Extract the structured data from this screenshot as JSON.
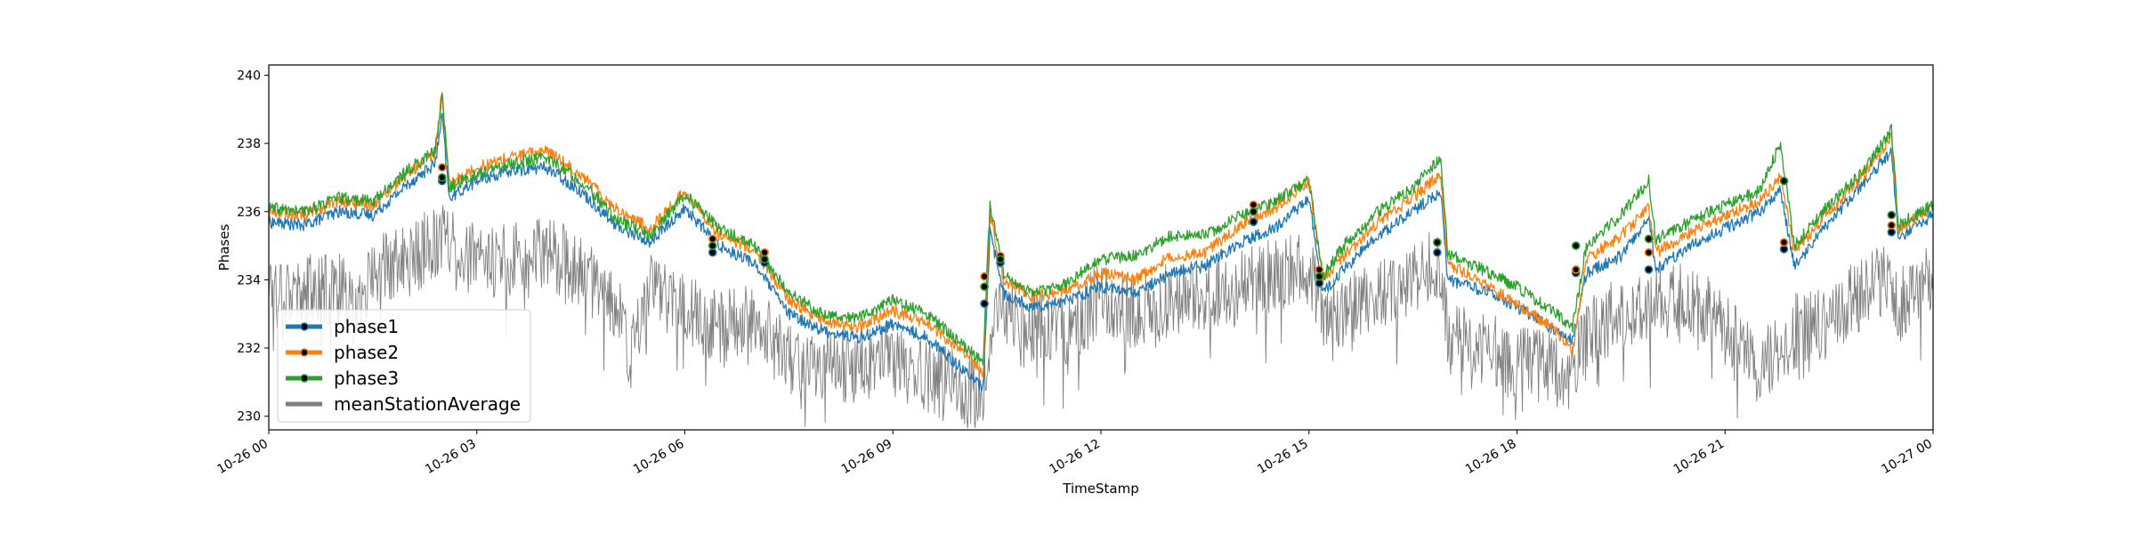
{
  "chart_data": {
    "type": "line",
    "title": "",
    "xlabel": "TimeStamp",
    "ylabel": "Phases",
    "ylim": [
      229.6,
      240.3
    ],
    "yticks": [
      230,
      232,
      234,
      236,
      238,
      240
    ],
    "xlim": [
      "10-26 00:00",
      "10-27 00:00"
    ],
    "xticks": [
      {
        "label": "10-26 00",
        "hour": 0
      },
      {
        "label": "10-26 03",
        "hour": 3
      },
      {
        "label": "10-26 06",
        "hour": 6
      },
      {
        "label": "10-26 09",
        "hour": 9
      },
      {
        "label": "10-26 12",
        "hour": 12
      },
      {
        "label": "10-26 15",
        "hour": 15
      },
      {
        "label": "10-26 18",
        "hour": 18
      },
      {
        "label": "10-26 21",
        "hour": 21
      },
      {
        "label": "10-27 00",
        "hour": 24
      }
    ],
    "legend_position": "lower-left",
    "grid": false,
    "series": [
      {
        "name": "phase1",
        "color": "#1f77b4",
        "x": [
          0,
          0.5,
          1,
          1.5,
          2,
          2.4,
          2.5,
          2.6,
          3,
          3.5,
          4,
          4.5,
          5,
          5.5,
          6,
          6.5,
          7,
          7.5,
          8,
          8.5,
          9,
          9.5,
          10,
          10.3,
          10.4,
          10.6,
          11,
          11.5,
          12,
          12.5,
          13,
          13.5,
          14,
          14.5,
          15,
          15.2,
          15.5,
          16,
          16.5,
          16.9,
          17,
          17.5,
          18,
          18.5,
          18.8,
          19,
          19.5,
          19.9,
          20,
          20.5,
          21,
          21.5,
          21.8,
          22,
          22.5,
          23,
          23.4,
          23.5,
          24
        ],
        "y": [
          235.7,
          235.6,
          236,
          235.9,
          236.8,
          237.4,
          238.8,
          236.4,
          236.9,
          237.2,
          237.3,
          236.6,
          235.6,
          235.1,
          236.1,
          235,
          234.5,
          233,
          232.5,
          232.3,
          232.7,
          232.3,
          231.4,
          230.8,
          235.4,
          233.6,
          233.2,
          233.4,
          233.8,
          233.6,
          234.2,
          234.4,
          235.1,
          235.5,
          236.4,
          233.6,
          234.3,
          235.3,
          236,
          236.6,
          234,
          233.7,
          233.2,
          232.6,
          232.2,
          234.2,
          234.7,
          235.8,
          234.3,
          235,
          235.5,
          236,
          236.6,
          234.4,
          235.7,
          236.8,
          237.8,
          235.2,
          235.9
        ]
      },
      {
        "name": "phase2",
        "color": "#ff7f0e",
        "x": [
          0,
          0.5,
          1,
          1.5,
          2,
          2.4,
          2.5,
          2.6,
          3,
          3.5,
          4,
          4.5,
          5,
          5.5,
          6,
          6.5,
          7,
          7.5,
          8,
          8.5,
          9,
          9.5,
          10,
          10.3,
          10.4,
          10.6,
          11,
          11.5,
          12,
          12.5,
          13,
          13.5,
          14,
          14.5,
          15,
          15.2,
          15.5,
          16,
          16.5,
          16.9,
          17,
          17.5,
          18,
          18.5,
          18.8,
          19,
          19.5,
          19.9,
          20,
          20.5,
          21,
          21.5,
          21.8,
          22,
          22.5,
          23,
          23.4,
          23.5,
          24
        ],
        "y": [
          236,
          235.9,
          236.3,
          236.2,
          237.1,
          237.7,
          239.6,
          236.8,
          237.3,
          237.6,
          237.8,
          237.1,
          236.1,
          235.5,
          236.6,
          235.3,
          234.9,
          233.4,
          232.8,
          232.6,
          233.1,
          232.7,
          231.9,
          231.3,
          235.9,
          234,
          233.5,
          233.7,
          234.2,
          234,
          234.7,
          234.8,
          235.6,
          236.1,
          236.9,
          234,
          234.7,
          235.7,
          236.4,
          237.1,
          234.5,
          233.9,
          233.3,
          232.6,
          231.9,
          234.6,
          235.3,
          236.1,
          234.8,
          235.4,
          235.9,
          236.3,
          237,
          234.8,
          236,
          237.1,
          238.2,
          235.5,
          236.1
        ]
      },
      {
        "name": "phase3",
        "color": "#2ca02c",
        "x": [
          0,
          0.5,
          1,
          1.5,
          2,
          2.4,
          2.5,
          2.6,
          3,
          3.5,
          4,
          4.5,
          5,
          5.5,
          6,
          6.5,
          7,
          7.5,
          8,
          8.5,
          9,
          9.5,
          10,
          10.3,
          10.4,
          10.6,
          11,
          11.5,
          12,
          12.5,
          13,
          13.5,
          14,
          14.5,
          15,
          15.2,
          15.5,
          16,
          16.5,
          16.9,
          17,
          17.5,
          18,
          18.5,
          18.8,
          19,
          19.5,
          19.9,
          20,
          20.5,
          21,
          21.5,
          21.8,
          22,
          22.5,
          23,
          23.4,
          23.5,
          24
        ],
        "y": [
          236.1,
          236,
          236.4,
          236.3,
          237.2,
          237.8,
          239.4,
          236.7,
          237.1,
          237.4,
          237.6,
          236.9,
          235.8,
          235.3,
          236.5,
          235.5,
          235,
          233.6,
          233,
          232.9,
          233.4,
          233,
          232.1,
          231.6,
          236.2,
          234.1,
          233.6,
          233.9,
          234.6,
          234.7,
          235.3,
          235.3,
          235.9,
          236.3,
          236.9,
          234.1,
          235,
          236,
          236.7,
          237.6,
          234.8,
          234.3,
          233.8,
          233.1,
          232.6,
          235,
          235.9,
          236.9,
          235.2,
          235.7,
          236.2,
          236.6,
          238,
          235,
          236.2,
          237.2,
          238.4,
          235.6,
          236.2
        ]
      },
      {
        "name": "meanStationAverage",
        "color": "#7f7f7f",
        "x": [
          0,
          0.5,
          1,
          1.3,
          1.5,
          2,
          2.5,
          3,
          3.5,
          4,
          4.5,
          5,
          5.2,
          5.5,
          6,
          6.5,
          7,
          7.5,
          8,
          8.5,
          9,
          9.5,
          10,
          10.3,
          10.5,
          11,
          11.5,
          12,
          12.5,
          13,
          13.5,
          14,
          14.5,
          15,
          15.2,
          15.5,
          16,
          16.5,
          16.9,
          17,
          17.5,
          18,
          18.5,
          18.8,
          19,
          19.5,
          20,
          20.5,
          21,
          21.5,
          22,
          22.5,
          23,
          23.4,
          23.5,
          24
        ],
        "y": [
          234,
          233.7,
          233.8,
          233,
          234.3,
          234.5,
          235.3,
          234.5,
          234.6,
          234.9,
          234.2,
          233.4,
          231.6,
          233.8,
          233.1,
          232.6,
          232.8,
          231.9,
          231.4,
          231.5,
          231.7,
          231.1,
          230.8,
          230.6,
          233.2,
          232.7,
          232.5,
          233.5,
          233,
          233.4,
          233.7,
          233.8,
          234.2,
          234.4,
          232.9,
          233,
          233.6,
          234,
          234.6,
          232.3,
          232,
          231.6,
          231.4,
          231.2,
          232.5,
          233,
          233.4,
          233.4,
          232.6,
          231.3,
          232.5,
          232.8,
          233.7,
          234.2,
          233.2,
          234.2
        ]
      }
    ],
    "markers": {
      "phase1": [
        [
          2.5,
          236.9
        ],
        [
          6.4,
          234.8
        ],
        [
          7.15,
          234.5
        ],
        [
          10.32,
          233.3
        ],
        [
          10.55,
          234.5
        ],
        [
          14.2,
          235.7
        ],
        [
          15.15,
          233.9
        ],
        [
          16.85,
          234.8
        ],
        [
          18.85,
          234.2
        ],
        [
          19.9,
          234.3
        ],
        [
          21.85,
          234.9
        ],
        [
          23.4,
          235.4
        ]
      ],
      "phase2": [
        [
          2.5,
          237.3
        ],
        [
          6.4,
          235.2
        ],
        [
          7.15,
          234.8
        ],
        [
          10.32,
          234.1
        ],
        [
          10.55,
          234.7
        ],
        [
          14.2,
          236.2
        ],
        [
          15.15,
          234.3
        ],
        [
          16.85,
          235.1
        ],
        [
          18.85,
          234.3
        ],
        [
          19.9,
          234.8
        ],
        [
          21.85,
          235.1
        ],
        [
          23.4,
          235.6
        ]
      ],
      "phase3": [
        [
          2.5,
          237.0
        ],
        [
          6.4,
          235.0
        ],
        [
          7.15,
          234.6
        ],
        [
          10.32,
          233.8
        ],
        [
          10.55,
          234.6
        ],
        [
          14.2,
          236.0
        ],
        [
          15.15,
          234.1
        ],
        [
          16.85,
          235.1
        ],
        [
          18.85,
          235.0
        ],
        [
          19.9,
          235.2
        ],
        [
          21.85,
          236.9
        ],
        [
          23.4,
          235.9
        ]
      ]
    }
  }
}
